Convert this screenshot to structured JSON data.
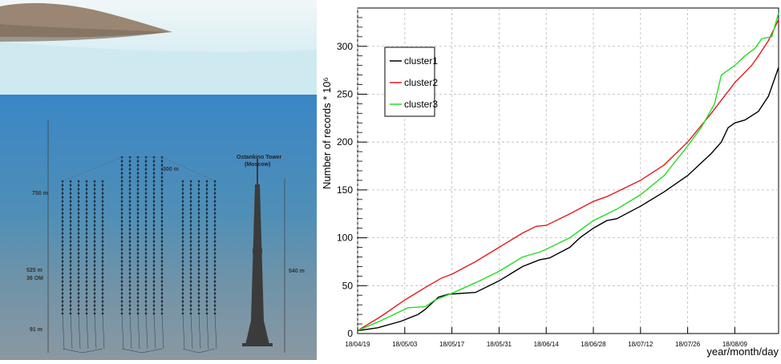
{
  "illustration": {
    "labels": {
      "depth_top": "750 m",
      "cluster_span": "300 m",
      "tower_name": "Ostankino Tower",
      "tower_city": "(Moscow)",
      "string_length": "525 m",
      "om_count": "36 OM",
      "tower_height": "540 m",
      "bottom_gap": "91 m"
    }
  },
  "chart_data": {
    "type": "line",
    "title": "",
    "xlabel": "year/month/day",
    "ylabel": "Number of records * 10⁶",
    "x_ticks": [
      "18/04/19",
      "18/05/03",
      "18/05/17",
      "18/05/31",
      "18/06/14",
      "18/06/28",
      "18/07/12",
      "18/07/26",
      "18/08/09"
    ],
    "xlim": [
      "18/04/19",
      "18/08/22"
    ],
    "ylim": [
      0,
      340
    ],
    "y_ticks": [
      "0",
      "50",
      "100",
      "150",
      "200",
      "250",
      "300"
    ],
    "grid": true,
    "legend_position": "top-left",
    "series": [
      {
        "name": "cluster1",
        "color": "#000000",
        "points": [
          [
            "18/04/19",
            3
          ],
          [
            "18/04/25",
            6
          ],
          [
            "18/05/02",
            13
          ],
          [
            "18/05/07",
            20
          ],
          [
            "18/05/09",
            25
          ],
          [
            "18/05/13",
            38
          ],
          [
            "18/05/16",
            41
          ],
          [
            "18/05/24",
            43
          ],
          [
            "18/05/31",
            55
          ],
          [
            "18/06/07",
            70
          ],
          [
            "18/06/12",
            77
          ],
          [
            "18/06/15",
            79
          ],
          [
            "18/06/21",
            90
          ],
          [
            "18/06/24",
            100
          ],
          [
            "18/06/28",
            110
          ],
          [
            "18/07/02",
            118
          ],
          [
            "18/07/05",
            120
          ],
          [
            "18/07/12",
            133
          ],
          [
            "18/07/19",
            148
          ],
          [
            "18/07/26",
            165
          ],
          [
            "18/08/02",
            188
          ],
          [
            "18/08/05",
            200
          ],
          [
            "18/08/07",
            215
          ],
          [
            "18/08/09",
            220
          ],
          [
            "18/08/12",
            223
          ],
          [
            "18/08/16",
            232
          ],
          [
            "18/08/19",
            248
          ],
          [
            "18/08/22",
            278
          ]
        ]
      },
      {
        "name": "cluster2",
        "color": "#e41a1c",
        "points": [
          [
            "18/04/19",
            3
          ],
          [
            "18/04/26",
            18
          ],
          [
            "18/05/03",
            35
          ],
          [
            "18/05/10",
            50
          ],
          [
            "18/05/14",
            58
          ],
          [
            "18/05/17",
            62
          ],
          [
            "18/05/24",
            75
          ],
          [
            "18/05/31",
            90
          ],
          [
            "18/06/07",
            105
          ],
          [
            "18/06/11",
            112
          ],
          [
            "18/06/14",
            113
          ],
          [
            "18/06/21",
            125
          ],
          [
            "18/06/28",
            138
          ],
          [
            "18/07/02",
            143
          ],
          [
            "18/07/05",
            148
          ],
          [
            "18/07/12",
            160
          ],
          [
            "18/07/19",
            176
          ],
          [
            "18/07/26",
            200
          ],
          [
            "18/08/02",
            230
          ],
          [
            "18/08/09",
            262
          ],
          [
            "18/08/14",
            280
          ],
          [
            "18/08/16",
            290
          ],
          [
            "18/08/19",
            306
          ],
          [
            "18/08/22",
            328
          ]
        ]
      },
      {
        "name": "cluster3",
        "color": "#22dd22",
        "points": [
          [
            "18/04/19",
            3
          ],
          [
            "18/04/25",
            12
          ],
          [
            "18/05/01",
            22
          ],
          [
            "18/05/04",
            27
          ],
          [
            "18/05/09",
            28
          ],
          [
            "18/05/12",
            35
          ],
          [
            "18/05/17",
            42
          ],
          [
            "18/05/24",
            53
          ],
          [
            "18/05/31",
            65
          ],
          [
            "18/06/07",
            80
          ],
          [
            "18/06/12",
            85
          ],
          [
            "18/06/14",
            88
          ],
          [
            "18/06/21",
            100
          ],
          [
            "18/06/28",
            118
          ],
          [
            "18/07/05",
            130
          ],
          [
            "18/07/12",
            145
          ],
          [
            "18/07/19",
            165
          ],
          [
            "18/07/26",
            196
          ],
          [
            "18/07/30",
            215
          ],
          [
            "18/08/03",
            240
          ],
          [
            "18/08/05",
            270
          ],
          [
            "18/08/09",
            280
          ],
          [
            "18/08/12",
            290
          ],
          [
            "18/08/15",
            298
          ],
          [
            "18/08/17",
            308
          ],
          [
            "18/08/20",
            310
          ],
          [
            "18/08/22",
            335
          ]
        ]
      }
    ]
  }
}
